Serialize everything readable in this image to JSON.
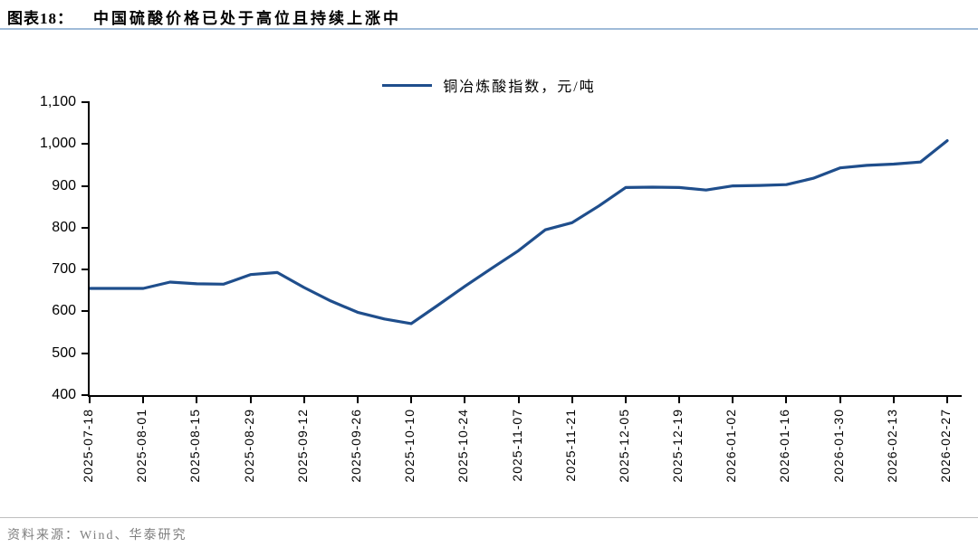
{
  "header": {
    "label": "图表18：",
    "title": "中国硫酸价格已处于高位且持续上涨中"
  },
  "footer": {
    "source": "资料来源：Wind、华泰研究"
  },
  "colors": {
    "line": "#1F4E8C",
    "title_rule": "#9FBBD8",
    "source_rule": "#BFBFBF",
    "source_text": "#7F7F7F",
    "axis": "#000000"
  },
  "chart_data": {
    "type": "line",
    "title": "中国硫酸价格已处于高位且持续上涨中",
    "legend": "铜冶炼酸指数，元/吨",
    "legend_position": "top-center",
    "grid": false,
    "xlabel": "",
    "ylabel": "",
    "ylim": [
      400,
      1100
    ],
    "yticks": [
      400,
      500,
      600,
      700,
      800,
      900,
      1000,
      1100
    ],
    "ytick_labels": [
      "400",
      "500",
      "600",
      "700",
      "800",
      "900",
      "1,000",
      "1,100"
    ],
    "x_tick_labels": [
      "2025-07-18",
      "2025-08-01",
      "2025-08-15",
      "2025-08-29",
      "2025-09-12",
      "2025-09-26",
      "2025-10-10",
      "2025-10-24",
      "2025-11-07",
      "2025-11-21",
      "2025-12-05",
      "2025-12-19",
      "2026-01-02",
      "2026-01-16",
      "2026-01-30",
      "2026-02-13",
      "2026-02-27"
    ],
    "x": [
      "2025-07-18",
      "2025-07-25",
      "2025-08-01",
      "2025-08-08",
      "2025-08-15",
      "2025-08-22",
      "2025-08-29",
      "2025-09-05",
      "2025-09-12",
      "2025-09-19",
      "2025-09-26",
      "2025-10-03",
      "2025-10-10",
      "2025-10-17",
      "2025-10-24",
      "2025-10-31",
      "2025-11-07",
      "2025-11-14",
      "2025-11-21",
      "2025-11-28",
      "2025-12-05",
      "2025-12-12",
      "2025-12-19",
      "2025-12-26",
      "2026-01-02",
      "2026-01-09",
      "2026-01-16",
      "2026-01-23",
      "2026-01-30",
      "2026-02-06",
      "2026-02-13",
      "2026-02-20",
      "2026-02-27"
    ],
    "series": [
      {
        "name": "铜冶炼酸指数，元/吨",
        "values": [
          655,
          655,
          655,
          670,
          666,
          665,
          688,
          693,
          657,
          625,
          598,
          582,
          571,
          615,
          660,
          703,
          745,
          795,
          812,
          852,
          896,
          897,
          896,
          890,
          900,
          901,
          903,
          918,
          943,
          949,
          952,
          957,
          1008
        ]
      }
    ]
  }
}
